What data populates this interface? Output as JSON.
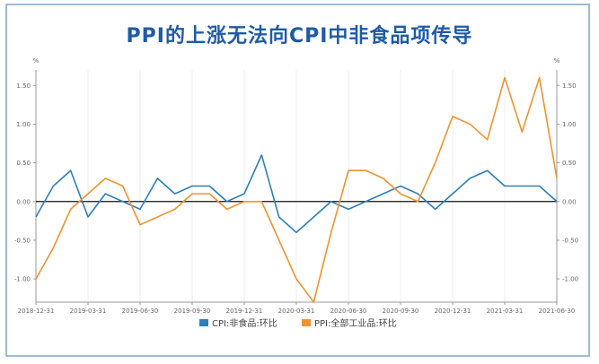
{
  "title": "PPI的上涨无法向CPI中非食品项传导",
  "chart_data": {
    "type": "line",
    "title": "PPI的上涨无法向CPI中非食品项传导",
    "yunit_left": "%",
    "yunit_right": "%",
    "ylim": [
      -1.3,
      1.7
    ],
    "yticks": [
      {
        "value": 1.5,
        "label": "1.50"
      },
      {
        "value": 1.0,
        "label": "1.00"
      },
      {
        "value": 0.5,
        "label": "0.50"
      },
      {
        "value": 0.0,
        "label": "0.00"
      },
      {
        "value": -0.5,
        "label": "-0.50"
      },
      {
        "value": -1.0,
        "label": "-1.00"
      }
    ],
    "x": [
      "2018-12",
      "2019-01",
      "2019-02",
      "2019-03",
      "2019-04",
      "2019-05",
      "2019-06",
      "2019-07",
      "2019-08",
      "2019-09",
      "2019-10",
      "2019-11",
      "2019-12",
      "2020-01",
      "2020-02",
      "2020-03",
      "2020-04",
      "2020-05",
      "2020-06",
      "2020-07",
      "2020-08",
      "2020-09",
      "2020-10",
      "2020-11",
      "2020-12",
      "2021-01",
      "2021-02",
      "2021-03",
      "2021-04",
      "2021-05",
      "2021-06"
    ],
    "xtick_labels": [
      "2018-12-31",
      "2019-03-31",
      "2019-06-30",
      "2019-09-30",
      "2019-12-31",
      "2020-03-31",
      "2020-06-30",
      "2020-09-30",
      "2020-12-31",
      "2021-03-31",
      "2021-06-30"
    ],
    "xtick_index": [
      0,
      3,
      6,
      9,
      12,
      15,
      18,
      21,
      24,
      27,
      30
    ],
    "series": [
      {
        "name": "CPI:非食品:环比",
        "color": "#2e7fb8",
        "values": [
          -0.2,
          0.2,
          0.4,
          -0.2,
          0.1,
          0.0,
          -0.1,
          0.3,
          0.1,
          0.2,
          0.2,
          0.0,
          0.1,
          0.6,
          -0.2,
          -0.4,
          -0.2,
          0.0,
          -0.1,
          0.0,
          0.1,
          0.2,
          0.1,
          -0.1,
          0.1,
          0.3,
          0.4,
          0.2,
          0.2,
          0.2,
          0.0
        ]
      },
      {
        "name": "PPI:全部工业品:环比",
        "color": "#f0922f",
        "values": [
          -1.0,
          -0.6,
          -0.1,
          0.1,
          0.3,
          0.2,
          -0.3,
          -0.2,
          -0.1,
          0.1,
          0.1,
          -0.1,
          0.0,
          0.0,
          -0.5,
          -1.0,
          -1.3,
          -0.4,
          0.4,
          0.4,
          0.3,
          0.1,
          0.0,
          0.5,
          1.1,
          1.0,
          0.8,
          1.6,
          0.9,
          1.6,
          0.3
        ]
      }
    ],
    "grid": "vertical",
    "legend": "bottom-center"
  }
}
